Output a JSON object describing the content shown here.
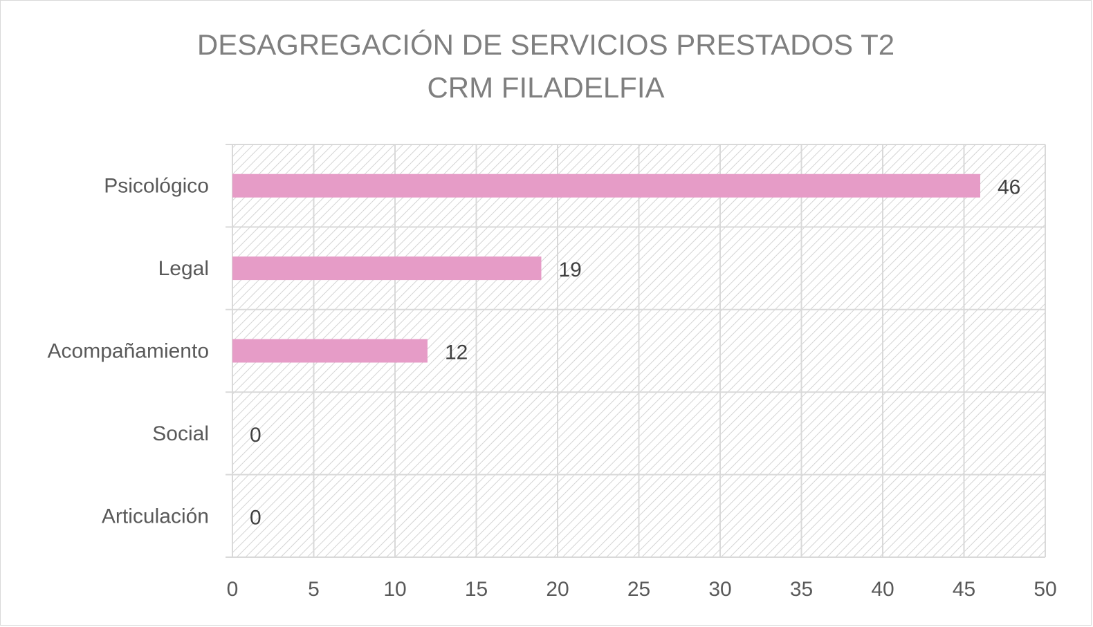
{
  "chart_data": {
    "type": "bar",
    "orientation": "horizontal",
    "title": "DESAGREGACIÓN DE SERVICIOS PRESTADOS T2",
    "subtitle": "CRM FILADELFIA",
    "categories": [
      "Psicológico",
      "Legal",
      "Acompañamiento",
      "Social",
      "Articulación"
    ],
    "values": [
      46,
      19,
      12,
      0,
      0
    ],
    "x_ticks": [
      "0",
      "5",
      "10",
      "15",
      "20",
      "25",
      "30",
      "35",
      "40",
      "45",
      "50"
    ],
    "xlim": [
      0,
      50
    ],
    "xlabel": "",
    "ylabel": "",
    "grid": true,
    "legend": "none",
    "bar_color": "#e69cc7",
    "plot_background": "hatched",
    "data_labels": true
  }
}
